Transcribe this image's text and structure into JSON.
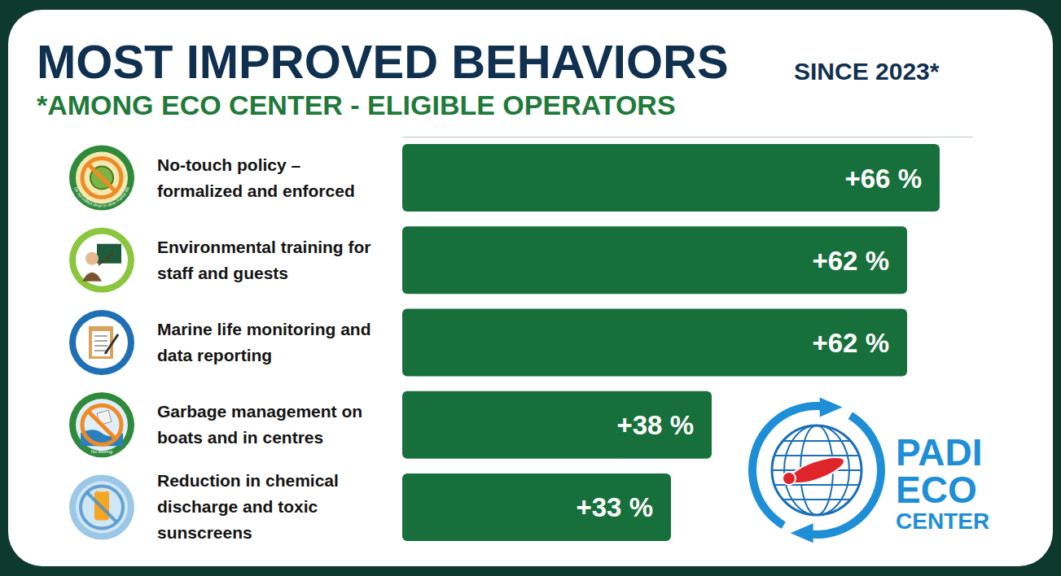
{
  "chart_data": {
    "type": "bar",
    "title": "MOST IMPROVED BEHAVIORS",
    "subtitle": "*AMONG ECO CENTER - ELIGIBLE OPERATORS",
    "annotation": "SINCE 2023*",
    "categories": [
      "No-touch policy – formalized and enforced",
      "Environmental training for staff and guests",
      "Marine life monitoring and data reporting",
      "Garbage management on boats and in centres",
      "Reduction in chemical discharge and toxic sunscreens"
    ],
    "values": [
      66,
      62,
      62,
      38,
      33
    ],
    "value_labels": [
      "+66 %",
      "+62 %",
      "+62 %",
      "+38 %",
      "+33 %"
    ],
    "color": "#17703b",
    "orientation": "horizontal",
    "data_labels": true,
    "tick_labels": false,
    "grid": false,
    "xlim": [
      0,
      70
    ],
    "logo_text": [
      "PADI",
      "ECO",
      "CENTER"
    ],
    "icon_texts": [
      {
        "index": 0,
        "text": "Do not collect dead or alive marine life"
      },
      {
        "index": 3,
        "text": "No littering"
      }
    ]
  }
}
